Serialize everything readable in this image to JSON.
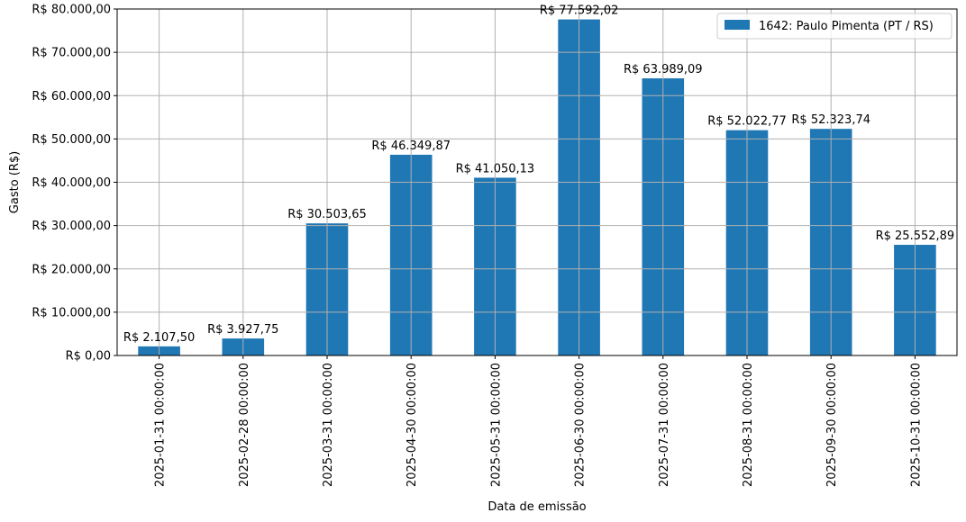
{
  "chart_data": {
    "type": "bar",
    "categories": [
      "2025-01-31 00:00:00",
      "2025-02-28 00:00:00",
      "2025-03-31 00:00:00",
      "2025-04-30 00:00:00",
      "2025-05-31 00:00:00",
      "2025-06-30 00:00:00",
      "2025-07-31 00:00:00",
      "2025-08-31 00:00:00",
      "2025-09-30 00:00:00",
      "2025-10-31 00:00:00"
    ],
    "series": [
      {
        "name": "1642: Paulo Pimenta (PT / RS)",
        "color": "#1f77b4",
        "values": [
          2107.5,
          3927.75,
          30503.65,
          46349.87,
          41050.13,
          77592.02,
          63989.09,
          52022.77,
          52323.74,
          25552.89
        ]
      }
    ],
    "data_labels": [
      "R$ 2.107,50",
      "R$ 3.927,75",
      "R$ 30.503,65",
      "R$ 46.349,87",
      "R$ 41.050,13",
      "R$ 77.592,02",
      "R$ 63.989,09",
      "R$ 52.022,77",
      "R$ 52.323,74",
      "R$ 25.552,89"
    ],
    "xlabel": "Data de emissão",
    "ylabel": "Gasto (R$)",
    "ylim": [
      0,
      80000
    ],
    "yticks": [
      0,
      10000,
      20000,
      30000,
      40000,
      50000,
      60000,
      70000,
      80000
    ],
    "ytick_labels": [
      "R$ 0,00",
      "R$ 10.000,00",
      "R$ 20.000,00",
      "R$ 30.000,00",
      "R$ 40.000,00",
      "R$ 50.000,00",
      "R$ 60.000,00",
      "R$ 70.000,00",
      "R$ 80.000,00"
    ],
    "grid": true,
    "legend_position": "top-right"
  }
}
